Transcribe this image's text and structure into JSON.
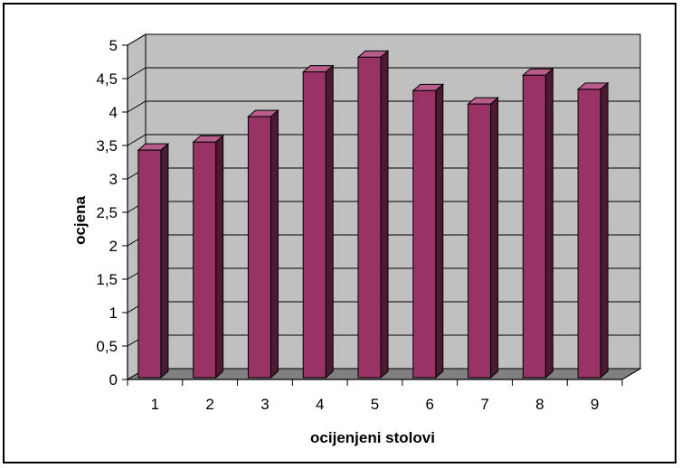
{
  "chart_data": {
    "type": "bar",
    "style": "3d-column",
    "title": "",
    "xlabel": "ocijenjeni stolovi",
    "ylabel": "ocjena",
    "categories": [
      "1",
      "2",
      "3",
      "4",
      "5",
      "6",
      "7",
      "8",
      "9"
    ],
    "values": [
      3.43,
      3.55,
      3.93,
      4.6,
      4.82,
      4.32,
      4.12,
      4.55,
      4.34
    ],
    "ylim": [
      0,
      5
    ],
    "ytick_step": 0.5,
    "ytick_labels": [
      "0",
      "0,5",
      "1",
      "1,5",
      "2",
      "2,5",
      "3",
      "3,5",
      "4",
      "4,5",
      "5"
    ],
    "grid": true,
    "legend": "none",
    "colors": {
      "bar_front": "#993366",
      "bar_side": "#4d1a33",
      "bar_top": "#b85c8a",
      "wall": "#c0c0c0",
      "floor": "#808080"
    }
  }
}
